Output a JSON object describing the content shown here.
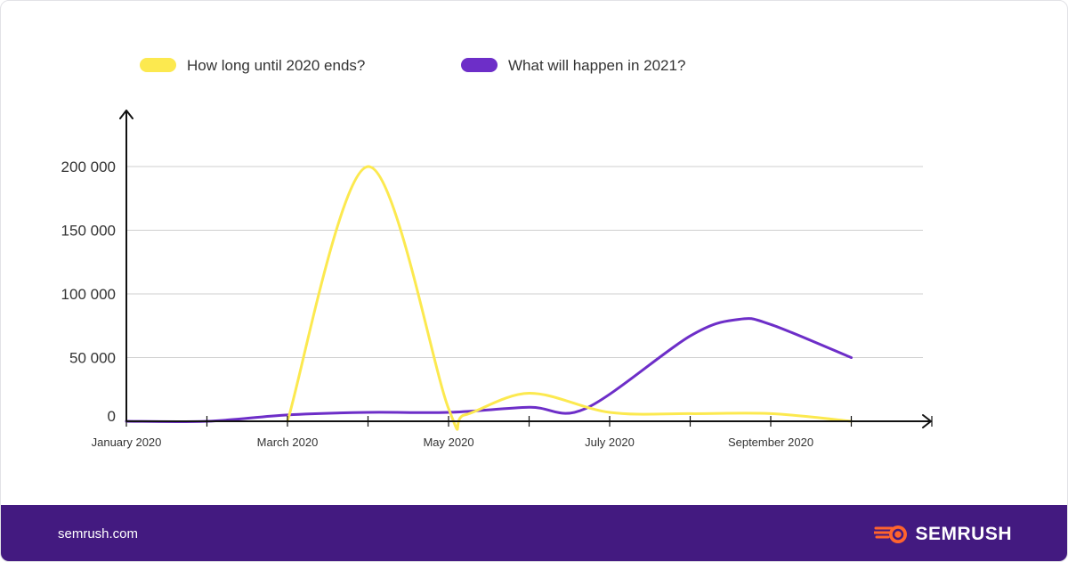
{
  "colors": {
    "series1": "#fce94f",
    "series2": "#6d2ec8",
    "axis": "#111111",
    "grid": "#cfcfcf",
    "footer_bg": "#431a80",
    "brand_accent": "#ff642d"
  },
  "footer": {
    "site": "semrush.com",
    "brand": "SEMRUSH",
    "brand_icon": "semrush-flame-logo-icon"
  },
  "chart_data": {
    "type": "line",
    "title": "",
    "xlabel": "",
    "ylabel": "",
    "legend_position": "top-left",
    "grid": true,
    "ylim": [
      0,
      200000
    ],
    "yticks": [
      0,
      50000,
      100000,
      150000,
      200000
    ],
    "ytick_labels": [
      "0",
      "50 000",
      "100 000",
      "150 000",
      "200 000"
    ],
    "x": [
      1,
      2,
      3,
      4,
      5,
      6,
      7,
      8,
      9,
      10,
      11
    ],
    "xtick_labels": [
      {
        "x": 1,
        "label": "January 2020"
      },
      {
        "x": 3,
        "label": "March 2020"
      },
      {
        "x": 5,
        "label": "May 2020"
      },
      {
        "x": 7,
        "label": "July 2020"
      },
      {
        "x": 9,
        "label": "September 2020"
      }
    ],
    "series": [
      {
        "name": "How long until 2020 ends?",
        "color": "#fce94f",
        "points": [
          [
            3,
            0
          ],
          [
            4,
            200000
          ],
          [
            5,
            10000
          ],
          [
            5.2,
            5000
          ],
          [
            6,
            22000
          ],
          [
            7,
            7000
          ],
          [
            8,
            6000
          ],
          [
            9,
            6000
          ],
          [
            10,
            0
          ]
        ]
      },
      {
        "name": "What will happen in 2021?",
        "color": "#6d2ec8",
        "points": [
          [
            1,
            0
          ],
          [
            2,
            0
          ],
          [
            3,
            5000
          ],
          [
            4,
            7000
          ],
          [
            5,
            7000
          ],
          [
            6,
            11000
          ],
          [
            6.7,
            10000
          ],
          [
            8,
            67000
          ],
          [
            8.6,
            80000
          ],
          [
            9,
            76000
          ],
          [
            10,
            50000
          ]
        ]
      }
    ]
  }
}
